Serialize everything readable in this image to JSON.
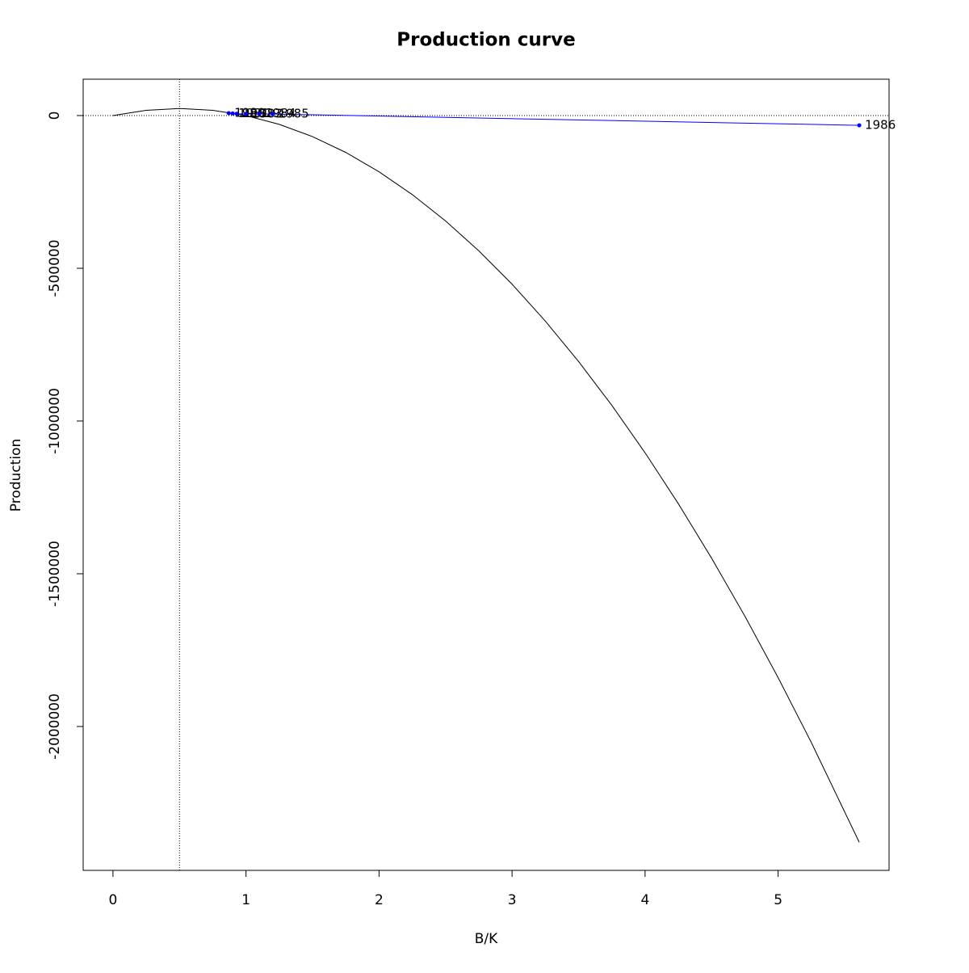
{
  "chart_data": {
    "type": "line",
    "title": "Production curve",
    "xlabel": "B/K",
    "ylabel": "Production",
    "xlim": [
      -0.224,
      5.834
    ],
    "ylim": [
      -2471000,
      119000
    ],
    "xticks": [
      0,
      1,
      2,
      3,
      4,
      5
    ],
    "yticks": [
      0,
      -500000,
      -1000000,
      -1500000,
      -2000000
    ],
    "vline": 0.5,
    "hline": 0,
    "curve": {
      "color": "#000000",
      "x": [
        0,
        0.25,
        0.5,
        0.75,
        1,
        1.25,
        1.5,
        1.75,
        2,
        2.25,
        2.5,
        2.75,
        3,
        3.25,
        3.5,
        3.75,
        4,
        4.25,
        4.5,
        4.75,
        5,
        5.25,
        5.61
      ],
      "y": [
        0,
        17250,
        23000,
        17250,
        0,
        -28750,
        -69000,
        -120750,
        -184000,
        -258750,
        -345000,
        -442750,
        -552000,
        -672750,
        -805000,
        -948750,
        -1104000,
        -1270750,
        -1449000,
        -1638750,
        -1840000,
        -2052750,
        -2379000
      ]
    },
    "points": {
      "color": "#0000ff",
      "labels": [
        "1980",
        "1981",
        "1982",
        "1983",
        "1984",
        "1985",
        "1986"
      ],
      "x": [
        0.87,
        0.9,
        0.93,
        1.0,
        1.1,
        1.2,
        5.61
      ],
      "y": [
        8000,
        7000,
        6000,
        5000,
        6000,
        5000,
        -32000
      ]
    }
  }
}
